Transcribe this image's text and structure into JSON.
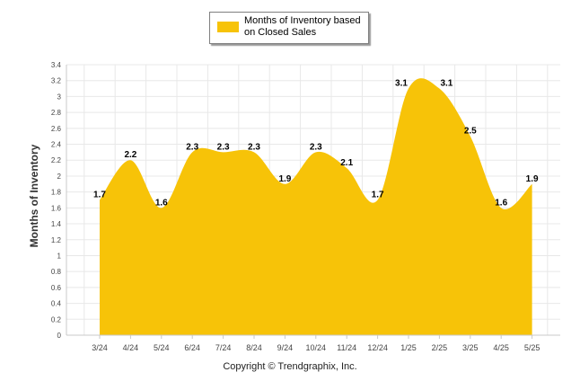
{
  "chart_data": {
    "type": "area",
    "categories": [
      "3/24",
      "4/24",
      "5/24",
      "6/24",
      "7/24",
      "8/24",
      "9/24",
      "10/24",
      "11/24",
      "12/24",
      "1/25",
      "2/25",
      "3/25",
      "4/25",
      "5/25"
    ],
    "series": [
      {
        "name": "Months of Inventory based on Closed Sales",
        "values": [
          1.7,
          2.2,
          1.6,
          2.3,
          2.3,
          2.3,
          1.9,
          2.3,
          2.1,
          1.7,
          3.1,
          3.1,
          2.5,
          1.6,
          1.9
        ],
        "color": "#f7c308"
      }
    ],
    "ylabel": "Months of Inventory",
    "xlabel": "",
    "ylim": [
      0,
      3.4
    ],
    "yticks": [
      "0",
      "0.2",
      "0.4",
      "0.6",
      "0.8",
      "1",
      "1.2",
      "1.4",
      "1.6",
      "1.8",
      "2",
      "2.2",
      "2.4",
      "2.6",
      "2.8",
      "3",
      "3.2",
      "3.4"
    ],
    "grid": true,
    "legend_position": "top"
  },
  "legend": {
    "label": "Months of Inventory based on Closed Sales"
  },
  "footer": {
    "copyright": "Copyright © Trendgraphix, Inc."
  },
  "colors": {
    "fill": "#f7c308",
    "grid": "#e8e8e8",
    "axis": "#c8c8c8"
  }
}
